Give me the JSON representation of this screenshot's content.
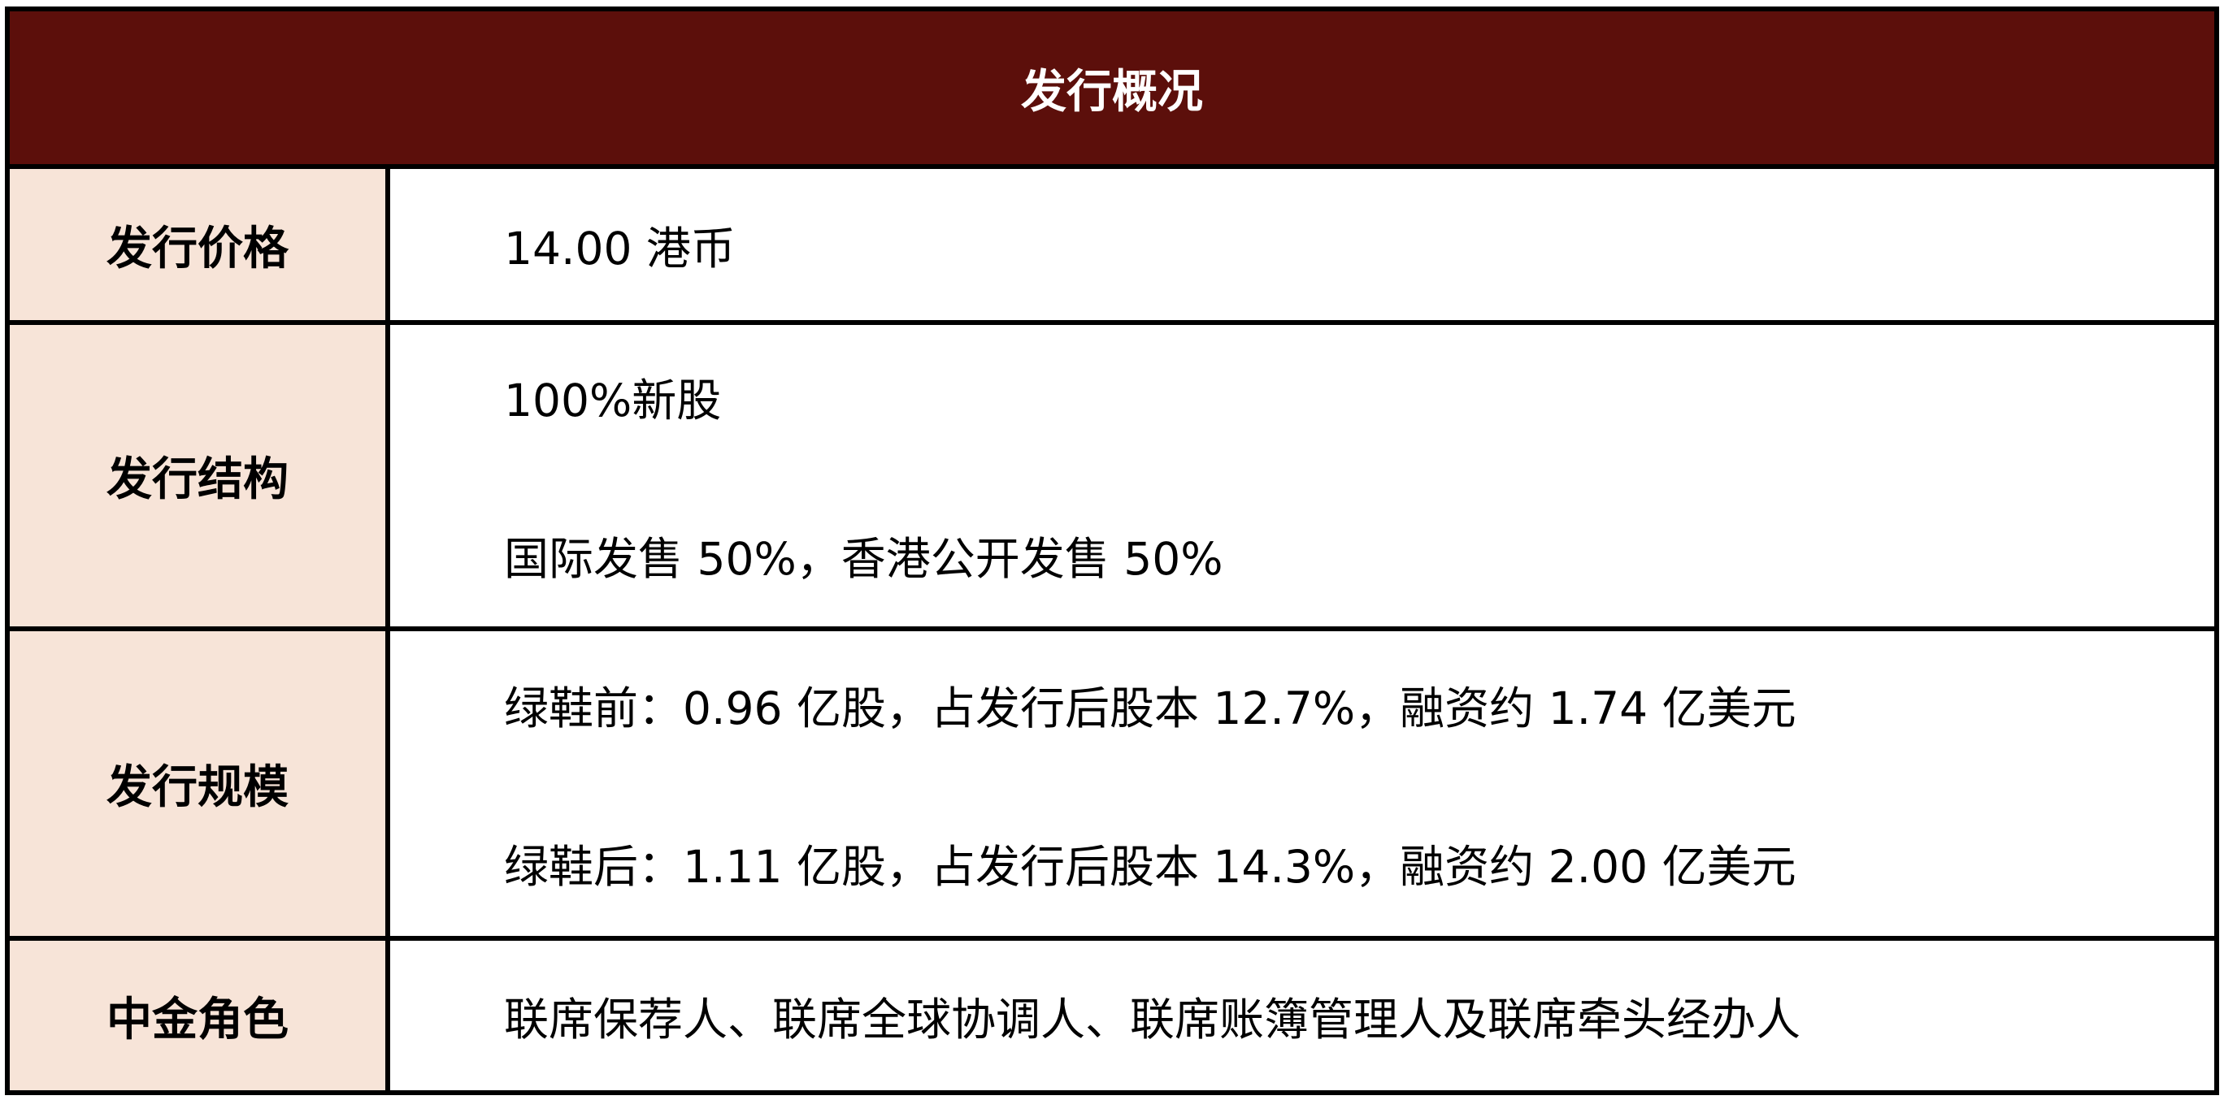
{
  "title": "发行概况",
  "colors": {
    "header_bg": "#5c0f0b",
    "label_bg": "#f7e4d8"
  },
  "rows": [
    {
      "label": "发行价格",
      "values": [
        "14.00 港币"
      ]
    },
    {
      "label": "发行结构",
      "values": [
        "100%新股",
        "国际发售 50%，香港公开发售 50%"
      ]
    },
    {
      "label": "发行规模",
      "values": [
        "绿鞋前：0.96 亿股，占发行后股本 12.7%，融资约 1.74 亿美元",
        "绿鞋后：1.11 亿股，占发行后股本 14.3%，融资约 2.00 亿美元"
      ]
    },
    {
      "label": "中金角色",
      "values": [
        "联席保荐人、联席全球协调人、联席账簿管理人及联席牵头经办人"
      ]
    }
  ]
}
